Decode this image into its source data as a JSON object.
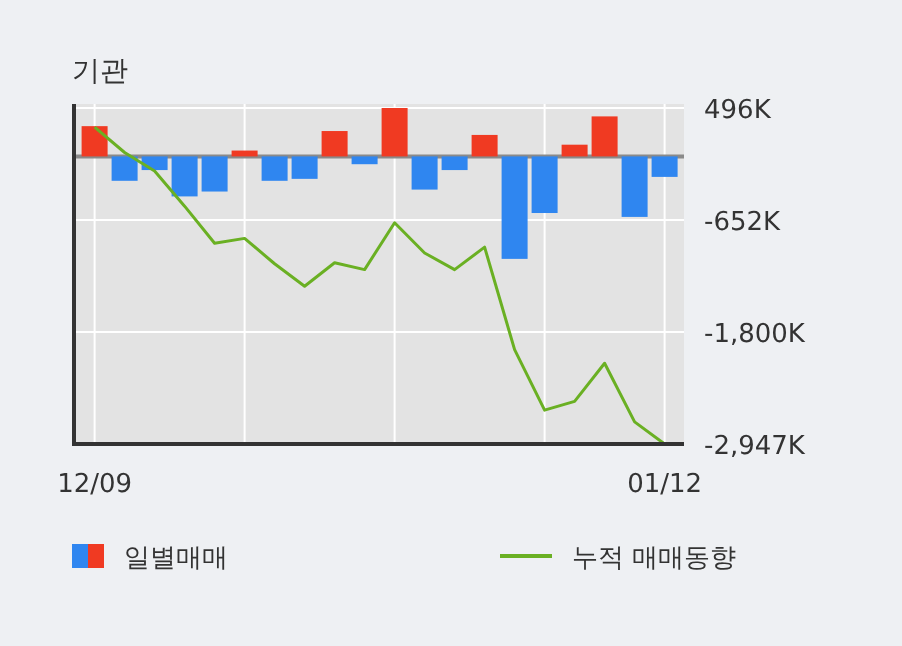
{
  "chart_data": {
    "type": "bar",
    "title": "기관",
    "categories": [
      "12/09",
      null,
      null,
      null,
      null,
      null,
      null,
      null,
      null,
      null,
      null,
      null,
      null,
      null,
      null,
      null,
      null,
      null,
      null,
      "01/12"
    ],
    "series": [
      {
        "name": "일별매매",
        "colors": [
          "#f03a22",
          "#2f86f0",
          "#2f86f0",
          "#2f86f0",
          "#2f86f0",
          "#f03a22",
          "#2f86f0",
          "#2f86f0",
          "#f03a22",
          "#2f86f0",
          "#f03a22",
          "#2f86f0",
          "#2f86f0",
          "#f03a22",
          "#2f86f0",
          "#2f86f0",
          "#f03a22",
          "#f03a22",
          "#2f86f0",
          "#2f86f0"
        ],
        "values": [
          310,
          -250,
          -140,
          -410,
          -360,
          60,
          -250,
          -230,
          260,
          -80,
          496,
          -340,
          -140,
          220,
          -1050,
          -580,
          120,
          410,
          -620,
          -210
        ]
      },
      {
        "name": "누적 매매동향",
        "type": "line",
        "color": "#6ab023",
        "values": [
          300,
          40,
          -150,
          -510,
          -890,
          -840,
          -1100,
          -1330,
          -1090,
          -1160,
          -680,
          -990,
          -1160,
          -930,
          -1980,
          -2600,
          -2510,
          -2120,
          -2720,
          -2947
        ]
      }
    ],
    "ylim": [
      -2947,
      496
    ],
    "yticks": [
      {
        "value": 496,
        "label": "496K"
      },
      {
        "value": -652,
        "label": "-652K"
      },
      {
        "value": -1800,
        "label": "-1,800K"
      },
      {
        "value": -2947,
        "label": "-2,947K"
      }
    ],
    "ref_lines": [
      {
        "axis": "y",
        "value": 0,
        "color": "#8a8a8a"
      }
    ],
    "grid": true,
    "legend": "bottom"
  }
}
